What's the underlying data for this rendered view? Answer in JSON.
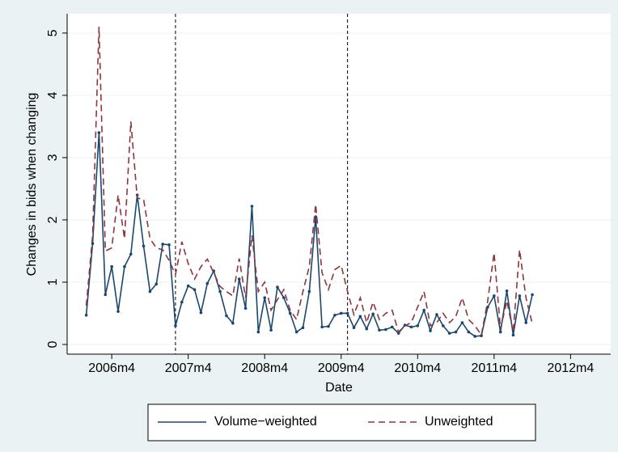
{
  "chart_data": {
    "type": "line",
    "x_label": "Date",
    "y_label": "Changes in bids when changing",
    "x": [
      551,
      552,
      553,
      554,
      555,
      556,
      557,
      558,
      559,
      560,
      561,
      562,
      563,
      564,
      565,
      566,
      567,
      568,
      569,
      570,
      571,
      572,
      573,
      574,
      575,
      576,
      577,
      578,
      579,
      580,
      581,
      582,
      583,
      584,
      585,
      586,
      587,
      588,
      589,
      590,
      591,
      592,
      593,
      594,
      595,
      596,
      597,
      598,
      599,
      600,
      601,
      602,
      603,
      604,
      605,
      606,
      607,
      608,
      609,
      610,
      611,
      612,
      613,
      614,
      615,
      616,
      617,
      618,
      619,
      620,
      621
    ],
    "series": [
      {
        "name": "Volume−weighted",
        "color": "#1a476f",
        "dash": false,
        "markers": true,
        "values": [
          0.47,
          1.62,
          3.4,
          0.8,
          1.25,
          0.53,
          1.25,
          1.45,
          2.4,
          1.58,
          0.85,
          0.97,
          1.61,
          1.6,
          0.3,
          0.68,
          0.94,
          0.88,
          0.51,
          0.98,
          1.18,
          0.85,
          0.46,
          0.34,
          1.05,
          0.58,
          2.22,
          0.2,
          0.75,
          0.23,
          0.92,
          0.75,
          0.5,
          0.2,
          0.27,
          0.85,
          2.05,
          0.28,
          0.29,
          0.47,
          0.5,
          0.5,
          0.27,
          0.45,
          0.25,
          0.49,
          0.23,
          0.24,
          0.28,
          0.18,
          0.31,
          0.28,
          0.3,
          0.55,
          0.22,
          0.48,
          0.3,
          0.18,
          0.2,
          0.35,
          0.2,
          0.13,
          0.14,
          0.6,
          0.78,
          0.2,
          0.86,
          0.15,
          0.78,
          0.35,
          0.8
        ]
      },
      {
        "name": "Unweighted",
        "color": "#90353b",
        "dash": true,
        "markers": false,
        "values": [
          0.62,
          1.75,
          5.1,
          1.5,
          1.55,
          2.4,
          1.7,
          3.58,
          2.35,
          2.33,
          1.7,
          1.55,
          1.52,
          1.35,
          1.12,
          1.65,
          1.3,
          1.05,
          1.25,
          1.37,
          1.15,
          0.93,
          0.85,
          0.78,
          1.38,
          0.75,
          1.75,
          0.85,
          1.0,
          0.55,
          0.72,
          0.88,
          0.55,
          0.4,
          0.85,
          1.25,
          2.25,
          1.15,
          0.88,
          1.2,
          1.27,
          0.85,
          0.48,
          0.75,
          0.35,
          0.68,
          0.4,
          0.5,
          0.55,
          0.2,
          0.3,
          0.35,
          0.6,
          0.85,
          0.3,
          0.35,
          0.5,
          0.35,
          0.45,
          0.75,
          0.4,
          0.3,
          0.15,
          0.7,
          1.47,
          0.25,
          0.7,
          0.2,
          1.52,
          0.75,
          0.33
        ]
      }
    ],
    "xlim": [
      548,
      633.3
    ],
    "xticks": [
      {
        "value": 555,
        "label": "2006m4"
      },
      {
        "value": 567,
        "label": "2007m4"
      },
      {
        "value": 579,
        "label": "2008m4"
      },
      {
        "value": 591,
        "label": "2009m4"
      },
      {
        "value": 603,
        "label": "2010m4"
      },
      {
        "value": 615,
        "label": "2011m4"
      },
      {
        "value": 627,
        "label": "2012m4"
      }
    ],
    "ylim": [
      -0.156,
      5.31
    ],
    "yticks": [
      0,
      1,
      2,
      3,
      4,
      5
    ],
    "vlines": [
      565,
      592
    ],
    "grid": true,
    "legend": "bottom"
  }
}
